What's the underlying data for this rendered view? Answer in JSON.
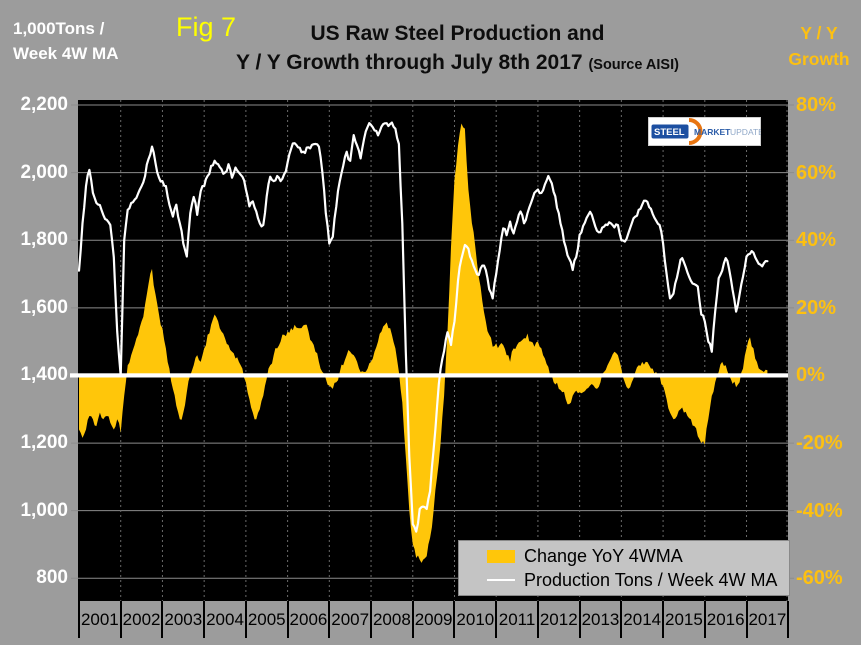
{
  "header": {
    "fig_label": "Fig 7",
    "title_line1": "US Raw Steel Production and",
    "title_line2": "Y / Y Growth through July 8th 2017",
    "title_source": "(Source AISI)",
    "left_axis_title_line1": "1,000Tons /",
    "left_axis_title_line2": "Week 4W MA",
    "right_axis_title_line1": "Y / Y",
    "right_axis_title_line2": "Growth"
  },
  "logo": {
    "word1": "STEEL",
    "word2": "MARKET",
    "word3": "UPDATE"
  },
  "legend": {
    "items": [
      {
        "label": "Change YoY 4WMA",
        "swatch": "area"
      },
      {
        "label": "Production Tons / Week 4W MA",
        "swatch": "line"
      }
    ]
  },
  "colors": {
    "background": "#9C9C9C",
    "plot_bg": "#000000",
    "area_yellow": "#FFC60A",
    "line_white": "#FFFFFF",
    "gold_text": "#FDC011",
    "fig_yellow": "#FFFF00",
    "legend_bg": "#C4C4C4",
    "grid_h": "#8C8C8C",
    "grid_v": "#6A6A6A",
    "zero_line": "#FFFFFF"
  },
  "chart_data": {
    "type": "combo",
    "title": "US Raw Steel Production and Y / Y Growth through July 8th 2017",
    "source": "AISI",
    "x_axis": {
      "year_labels": [
        "2001",
        "2002",
        "2003",
        "2004",
        "2005",
        "2006",
        "2007",
        "2008",
        "2009",
        "2010",
        "2011",
        "2012",
        "2013",
        "2014",
        "2015",
        "2016",
        "2017"
      ],
      "range": [
        2001,
        2018
      ],
      "gridlines": "dotted vertical at each year boundary"
    },
    "left_axis": {
      "title": "1,000 Tons / Week 4W MA",
      "range": [
        800,
        2200
      ],
      "tick_step": 200,
      "tick_labels": [
        "2,200",
        "2,000",
        "1,800",
        "1,600",
        "1,400",
        "1,200",
        "1,000",
        "800"
      ],
      "tick_values": [
        2200,
        2000,
        1800,
        1600,
        1400,
        1200,
        1000,
        800
      ]
    },
    "right_axis": {
      "title": "Y / Y Growth",
      "range": [
        -60,
        80
      ],
      "tick_step": 20,
      "unit": "%",
      "tick_labels": [
        "80%",
        "60%",
        "40%",
        "20%",
        "0%",
        "-20%",
        "-40%",
        "-60%"
      ],
      "tick_values": [
        80,
        60,
        40,
        20,
        0,
        -20,
        -40,
        -60
      ]
    },
    "zero_reference": {
      "right_axis_value": 0,
      "aligned_left_axis_value": 1400,
      "style": "thick white horizontal line"
    },
    "sampling": "monthly values estimated from chart, Jan 2001 through Jul 2017",
    "series": [
      {
        "name": "Change YoY 4WMA",
        "type": "area",
        "axis": "right",
        "unit": "%",
        "color": "#FFC60A",
        "start_year": 2001,
        "points_per_year": 12,
        "values": [
          -16,
          -18.5,
          -16,
          -12,
          -13,
          -15,
          -11,
          -13,
          -12,
          -14,
          -16,
          -13,
          -17,
          -6,
          3,
          6,
          9,
          12,
          16,
          21,
          27,
          31.5,
          24,
          18,
          14,
          8,
          2,
          -4,
          -9,
          -13,
          -11,
          -5,
          0,
          3,
          6,
          4,
          8,
          12,
          15,
          18,
          16,
          13,
          11,
          9,
          7,
          5,
          4,
          2,
          -2,
          -7,
          -11,
          -13,
          -10,
          -6,
          -1,
          3,
          6,
          8,
          10,
          12,
          13,
          14,
          15,
          14,
          14,
          15,
          13,
          10,
          7,
          4,
          1,
          -1,
          -3,
          -4,
          -2,
          1,
          3,
          6,
          7,
          6,
          4,
          1,
          1,
          2,
          4,
          7,
          10,
          13,
          15,
          14,
          12,
          8,
          1,
          -8,
          -24,
          -40,
          -50,
          -54,
          -54.5,
          -54.5,
          -53.5,
          -48,
          -40,
          -30,
          -20,
          -6,
          13,
          38,
          58,
          68,
          74.5,
          73,
          55,
          45,
          38,
          29,
          22,
          16,
          12,
          8.5,
          9.5,
          9,
          9,
          6,
          4,
          8,
          9,
          10,
          11,
          12.4,
          10,
          8.5,
          10,
          8,
          5,
          2.5,
          0,
          -2.7,
          -4,
          -5,
          -7,
          -8.5,
          -6,
          -4.5,
          -5,
          -5,
          -4,
          -3,
          -3,
          -4,
          -2,
          1,
          3,
          5,
          7,
          6,
          2,
          -2,
          -4,
          -2,
          1,
          3,
          4,
          4,
          3,
          2,
          1,
          0,
          -3,
          -7,
          -11,
          -13,
          -12,
          -10,
          -11,
          -12,
          -13,
          -15,
          -18,
          -20,
          -20.5,
          -13,
          -6,
          -2,
          1,
          4,
          3,
          0,
          -2.5,
          -3.5,
          -2,
          2,
          8,
          11.3,
          8,
          4,
          1.7,
          1,
          1.5
        ]
      },
      {
        "name": "Production Tons / Week 4W MA",
        "type": "line",
        "axis": "left",
        "unit": "1,000 tons per week",
        "color": "#FFFFFF",
        "start_year": 2001,
        "points_per_year": 12,
        "values": [
          1710,
          1850,
          1960,
          2008,
          1940,
          1910,
          1904,
          1875,
          1860,
          1845,
          1750,
          1530,
          1400,
          1800,
          1890,
          1910,
          1920,
          1938,
          1960,
          1990,
          2040,
          2077,
          2028,
          1985,
          1975,
          1960,
          1905,
          1870,
          1905,
          1850,
          1790,
          1752,
          1880,
          1928,
          1875,
          1945,
          1960,
          1990,
          2020,
          2035,
          2025,
          2010,
          2000,
          2025,
          1985,
          2015,
          2000,
          1988,
          1950,
          1900,
          1915,
          1885,
          1850,
          1845,
          1930,
          1988,
          1975,
          1990,
          1975,
          1995,
          2030,
          2070,
          2087,
          2075,
          2060,
          2058,
          2075,
          2082,
          2085,
          2077,
          2000,
          1880,
          1790,
          1810,
          1900,
          1975,
          2020,
          2062,
          2035,
          2111,
          2080,
          2042,
          2100,
          2135,
          2141,
          2125,
          2110,
          2136,
          2146,
          2138,
          2148,
          2130,
          2085,
          1850,
          1470,
          1160,
          960,
          938,
          1005,
          1012,
          1005,
          1058,
          1180,
          1310,
          1420,
          1472,
          1528,
          1490,
          1560,
          1680,
          1745,
          1786,
          1775,
          1740,
          1712,
          1697,
          1725,
          1712,
          1655,
          1628,
          1700,
          1770,
          1835,
          1815,
          1855,
          1820,
          1855,
          1885,
          1850,
          1880,
          1910,
          1940,
          1950,
          1940,
          1965,
          1990,
          1968,
          1930,
          1880,
          1830,
          1780,
          1745,
          1712,
          1750,
          1816,
          1842,
          1866,
          1884,
          1858,
          1828,
          1824,
          1840,
          1845,
          1850,
          1838,
          1845,
          1800,
          1796,
          1820,
          1850,
          1870,
          1890,
          1905,
          1917,
          1898,
          1878,
          1858,
          1845,
          1790,
          1700,
          1628,
          1642,
          1690,
          1742,
          1735,
          1705,
          1680,
          1670,
          1663,
          1580,
          1560,
          1500,
          1470,
          1590,
          1688,
          1710,
          1747,
          1715,
          1653,
          1589,
          1640,
          1692,
          1752,
          1760,
          1763,
          1740,
          1728,
          1732,
          1738
        ]
      }
    ]
  }
}
